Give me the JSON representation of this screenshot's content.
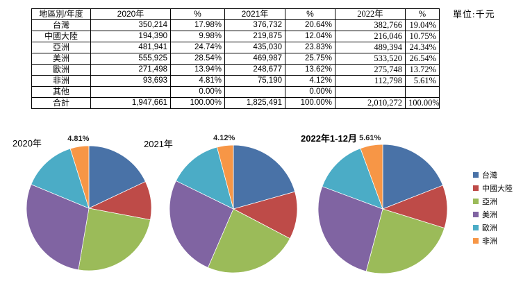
{
  "unit_label": "單位:千元",
  "palette": {
    "台灣": "#4972A7",
    "中國大陸": "#BE4B48",
    "亞洲": "#9BBB59",
    "美洲": "#8064A2",
    "歐洲": "#4BACC6",
    "非洲": "#F79646"
  },
  "table": {
    "headers": [
      "地區別/年度",
      "2020年",
      "%",
      "2021年",
      "%",
      "2022年",
      "%"
    ],
    "rows": [
      [
        "台灣",
        "350,214",
        "17.98%",
        "376,732",
        "20.64%",
        "382,766",
        "19.04%"
      ],
      [
        "中國大陸",
        "194,390",
        "9.98%",
        "219,875",
        "12.04%",
        "216,046",
        "10.75%"
      ],
      [
        "亞洲",
        "481,941",
        "24.74%",
        "435,030",
        "23.83%",
        "489,394",
        "24.34%"
      ],
      [
        "美洲",
        "555,925",
        "28.54%",
        "469,987",
        "25.75%",
        "533,520",
        "26.54%"
      ],
      [
        "歐洲",
        "271,498",
        "13.94%",
        "248,677",
        "13.62%",
        "275,748",
        "13.72%"
      ],
      [
        "非洲",
        "93,693",
        "4.81%",
        "75,190",
        "4.12%",
        "112,798",
        "5.61%"
      ],
      [
        "其他",
        "",
        "0.00%",
        "",
        "0.00%",
        "",
        ""
      ],
      [
        "合計",
        "1,947,661",
        "100.00%",
        "1,825,491",
        "100.00%",
        "2,010,272",
        "100.00%"
      ]
    ]
  },
  "legend": {
    "position": "right",
    "items": [
      "台灣",
      "中國大陸",
      "亞洲",
      "美洲",
      "歐洲",
      "非洲"
    ]
  },
  "chart_data": [
    {
      "type": "pie",
      "title": "2020年",
      "categories": [
        "台灣",
        "中國大陸",
        "亞洲",
        "美洲",
        "歐洲",
        "非洲"
      ],
      "values": [
        17.98,
        9.98,
        24.74,
        28.54,
        13.94,
        4.81
      ],
      "start_angle_deg": 0,
      "direction": "clockwise",
      "label_format": "percent-2dp",
      "small_slice_label": "outside-top"
    },
    {
      "type": "pie",
      "title": "2021年",
      "categories": [
        "台灣",
        "中國大陸",
        "亞洲",
        "美洲",
        "歐洲",
        "非洲"
      ],
      "values": [
        20.64,
        12.04,
        23.83,
        25.75,
        13.62,
        4.12
      ],
      "start_angle_deg": 0,
      "direction": "clockwise",
      "label_format": "percent-2dp",
      "small_slice_label": "outside-top"
    },
    {
      "type": "pie",
      "title": "2022年1-12月",
      "categories": [
        "台灣",
        "中國大陸",
        "亞洲",
        "美洲",
        "歐洲",
        "非洲"
      ],
      "values": [
        19.04,
        10.75,
        24.34,
        26.54,
        13.72,
        5.61
      ],
      "start_angle_deg": 0,
      "direction": "clockwise",
      "label_format": "percent-2dp",
      "small_slice_label": "outside-top"
    }
  ]
}
